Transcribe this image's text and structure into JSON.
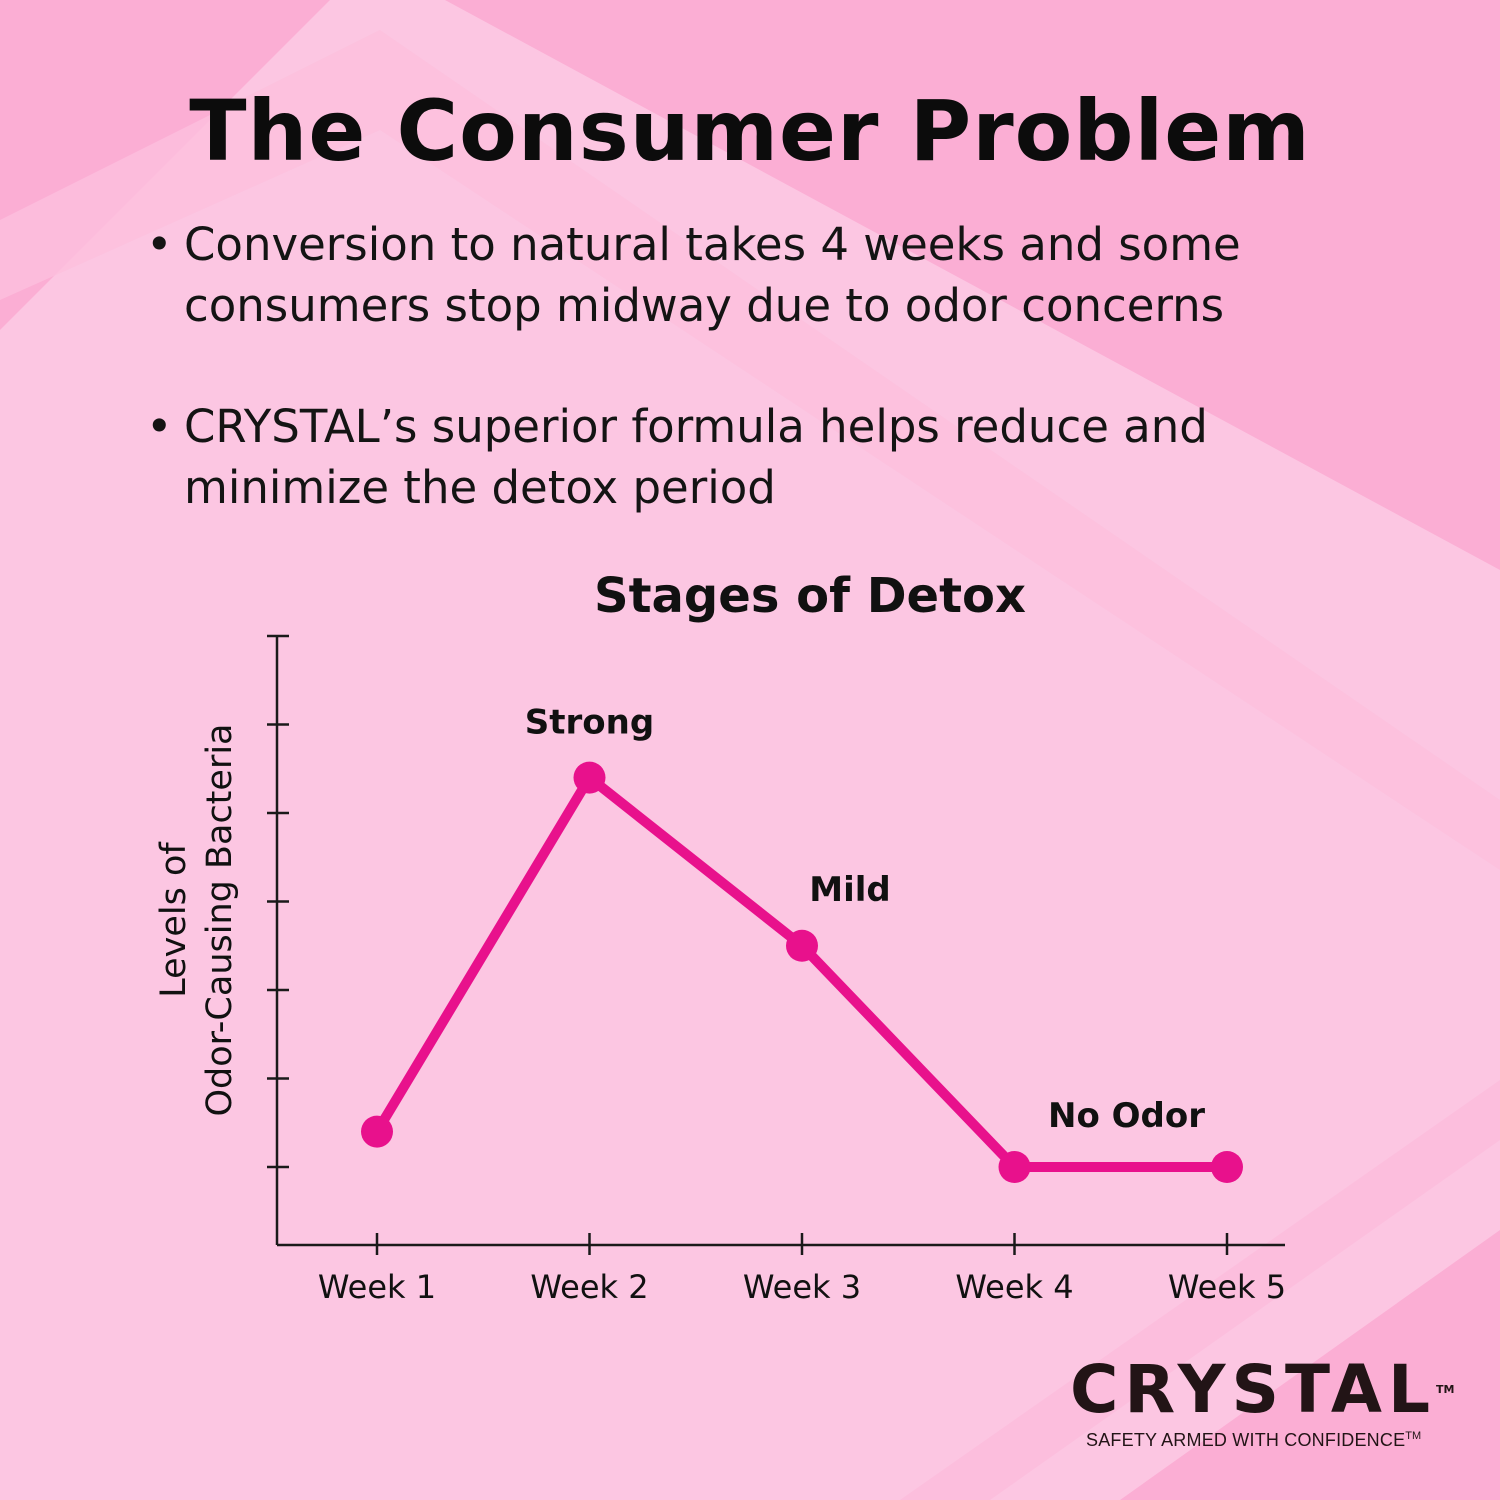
{
  "heading": {
    "title": "The Consumer Problem"
  },
  "bullets": [
    {
      "text": "Conversion to natural takes 4 weeks and some consumers stop midway due to odor concerns"
    },
    {
      "text": "CRYSTAL’s superior formula helps reduce and minimize the detox period"
    }
  ],
  "colors": {
    "background": "#fcc6e2",
    "stripe": "#fbaed4",
    "line": "#e8118c",
    "text": "#111111"
  },
  "chart_data": {
    "type": "line",
    "title": "Stages of Detox",
    "xlabel": "",
    "ylabel": [
      "Levels of",
      "Odor-Causing Bacteria"
    ],
    "categories": [
      "Week 1",
      "Week 2",
      "Week 3",
      "Week 4",
      "Week 5"
    ],
    "series": [
      {
        "values": [
          0.4,
          4.4,
          2.5,
          0,
          0
        ]
      }
    ],
    "ylim": [
      0,
      6
    ],
    "yticks": 7,
    "annotations": [
      {
        "index": 1,
        "text": "Strong"
      },
      {
        "index": 2,
        "text": "Mild"
      },
      {
        "index": 3,
        "text": "No Odor"
      }
    ],
    "grid": false,
    "legend": "none"
  },
  "logo": {
    "wordmark": "CRYSTAL",
    "tagline": "SAFETY ARMED WITH CONFIDENCE",
    "trademark": "TM"
  }
}
